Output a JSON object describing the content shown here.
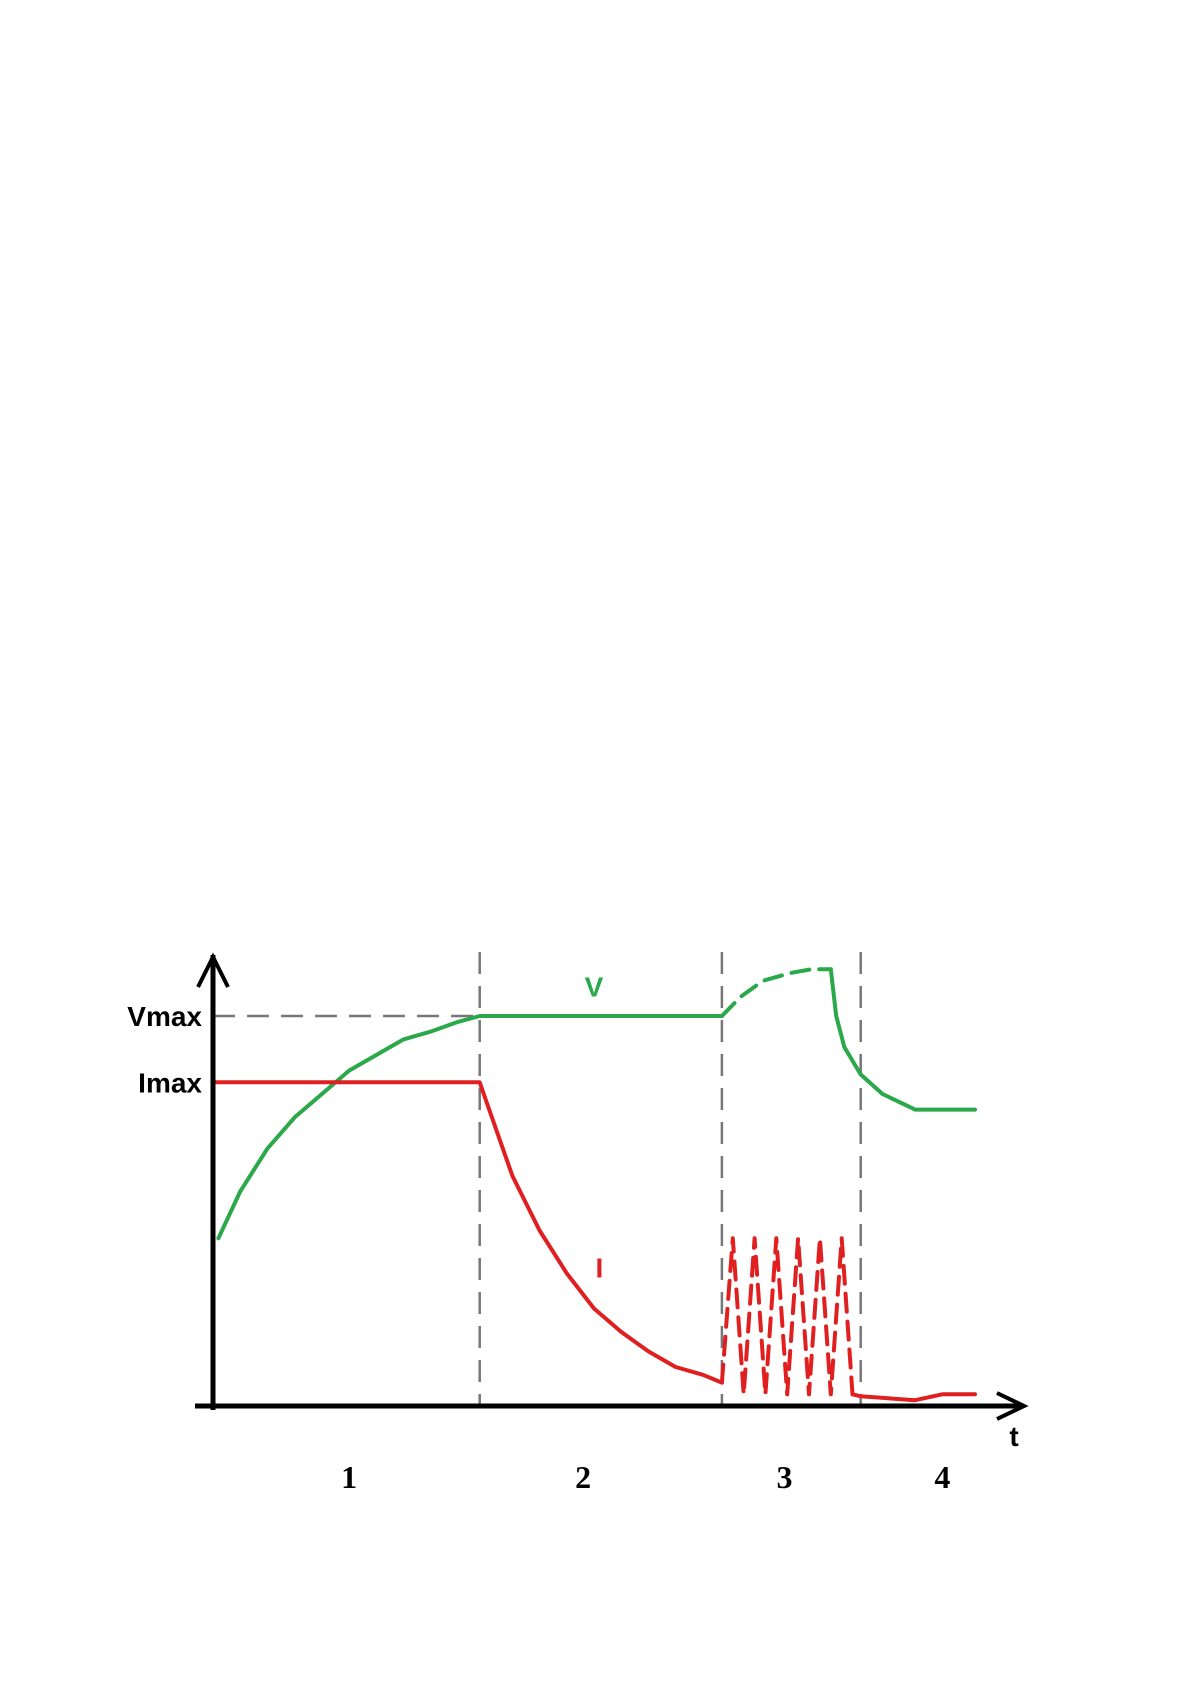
{
  "chart_data": {
    "type": "line",
    "title": "",
    "xlabel": "t",
    "ylabel": "",
    "grid": false,
    "xlim": [
      0,
      14
    ],
    "ylim": [
      0,
      1.11
    ],
    "y_tick_labels": [
      {
        "text": "Vmax",
        "value": 1.0
      },
      {
        "text": "Imax",
        "value": 0.83
      }
    ],
    "phase_boundaries": [
      4.9,
      9.35,
      11.9
    ],
    "phase_labels": [
      {
        "text": "1",
        "x": 2.5
      },
      {
        "text": "2",
        "x": 6.8
      },
      {
        "text": "3",
        "x": 10.5
      },
      {
        "text": "4",
        "x": 13.4
      }
    ],
    "series": [
      {
        "name": "V",
        "color": "#2aa84a",
        "label_at": {
          "x": 7.0,
          "y": 1.05
        },
        "segments": [
          {
            "style": "solid",
            "points": [
              [
                0.1,
                0.43
              ],
              [
                0.5,
                0.55
              ],
              [
                1,
                0.66
              ],
              [
                1.5,
                0.74
              ],
              [
                2,
                0.8
              ],
              [
                2.5,
                0.86
              ],
              [
                3,
                0.9
              ],
              [
                3.5,
                0.94
              ],
              [
                4,
                0.96
              ],
              [
                4.5,
                0.985
              ],
              [
                4.9,
                1.0
              ],
              [
                9.35,
                1.0
              ]
            ]
          },
          {
            "style": "dashed",
            "points": [
              [
                9.35,
                1.0
              ],
              [
                9.7,
                1.05
              ],
              [
                10.1,
                1.09
              ],
              [
                10.6,
                1.11
              ],
              [
                11.0,
                1.12
              ],
              [
                11.35,
                1.12
              ]
            ]
          },
          {
            "style": "solid",
            "points": [
              [
                11.35,
                1.12
              ],
              [
                11.45,
                1.0
              ],
              [
                11.6,
                0.92
              ],
              [
                11.9,
                0.85
              ],
              [
                12.3,
                0.8
              ],
              [
                12.9,
                0.76
              ],
              [
                14.0,
                0.76
              ]
            ]
          }
        ]
      },
      {
        "name": "I",
        "color": "#e02020",
        "label_at": {
          "x": 7.1,
          "y": 0.33
        },
        "segments": [
          {
            "style": "solid",
            "points": [
              [
                0,
                0.83
              ],
              [
                4.9,
                0.83
              ],
              [
                5.0,
                0.79
              ],
              [
                5.5,
                0.59
              ],
              [
                6,
                0.45
              ],
              [
                6.5,
                0.34
              ],
              [
                7,
                0.25
              ],
              [
                7.5,
                0.19
              ],
              [
                8,
                0.14
              ],
              [
                8.5,
                0.1
              ],
              [
                9,
                0.08
              ],
              [
                9.35,
                0.06
              ]
            ]
          },
          {
            "style": "dashed",
            "points": [
              [
                9.35,
                0.06
              ],
              [
                9.55,
                0.43
              ],
              [
                9.75,
                0.03
              ],
              [
                9.95,
                0.43
              ],
              [
                10.15,
                0.03
              ],
              [
                10.35,
                0.43
              ],
              [
                10.55,
                0.03
              ],
              [
                10.75,
                0.43
              ],
              [
                10.95,
                0.03
              ],
              [
                11.15,
                0.43
              ],
              [
                11.35,
                0.03
              ],
              [
                11.55,
                0.43
              ],
              [
                11.75,
                0.03
              ]
            ]
          },
          {
            "style": "solid",
            "points": [
              [
                11.75,
                0.03
              ],
              [
                11.9,
                0.025
              ],
              [
                12.9,
                0.015
              ],
              [
                13.4,
                0.03
              ],
              [
                14.0,
                0.03
              ]
            ]
          }
        ]
      }
    ]
  }
}
